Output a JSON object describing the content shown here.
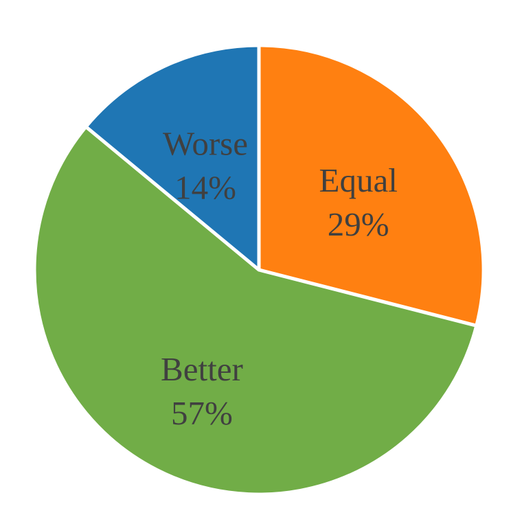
{
  "chart_data": {
    "type": "pie",
    "title": "",
    "start_angle_deg": 0,
    "direction": "clockwise",
    "slices": [
      {
        "name": "Equal",
        "value": 29,
        "label_name": "Equal",
        "label_value": "29%",
        "color": "#FF8011"
      },
      {
        "name": "Better",
        "value": 57,
        "label_name": "Better",
        "label_value": "57%",
        "color": "#71AD47"
      },
      {
        "name": "Worse",
        "value": 14,
        "label_name": "Worse",
        "label_value": "14%",
        "color": "#1F76B4"
      }
    ]
  }
}
